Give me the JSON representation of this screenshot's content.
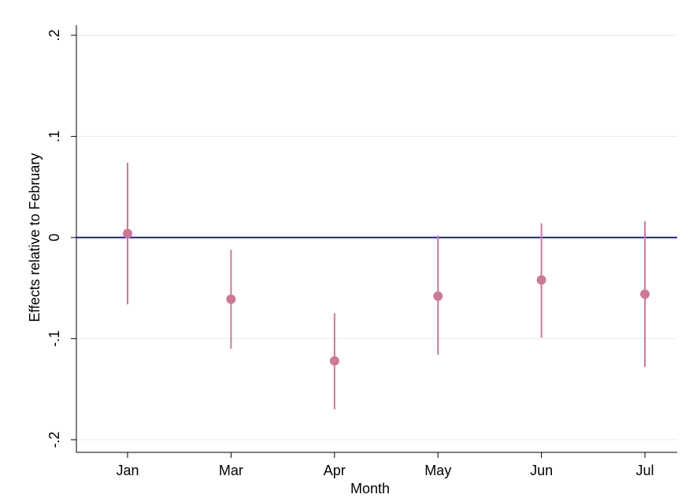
{
  "chart_data": {
    "type": "errorbar",
    "x_label": "Month",
    "y_label": "Effects relative to February",
    "categories": [
      "Jan",
      "Mar",
      "Apr",
      "May",
      "Jun",
      "Jul"
    ],
    "series": [
      {
        "color": "#cf7896",
        "values": [
          0.004,
          -0.061,
          -0.122,
          -0.058,
          -0.042,
          -0.056
        ],
        "lower": [
          -0.066,
          -0.11,
          -0.17,
          -0.116,
          -0.099,
          -0.128
        ],
        "upper": [
          0.074,
          -0.012,
          -0.075,
          0.002,
          0.014,
          0.016
        ]
      }
    ],
    "ylim": [
      -0.2125,
      0.21
    ],
    "yticks": [
      {
        "value": -0.2,
        "label": "-.2"
      },
      {
        "value": -0.1,
        "label": "-.1"
      },
      0,
      {
        "value": 0.1,
        "label": ".1"
      },
      {
        "value": 0.2,
        "label": ".2"
      }
    ],
    "grid": true,
    "grid_color": "#e6eef2",
    "reference_line": {
      "value": 0,
      "color": "#1a1acc"
    }
  }
}
